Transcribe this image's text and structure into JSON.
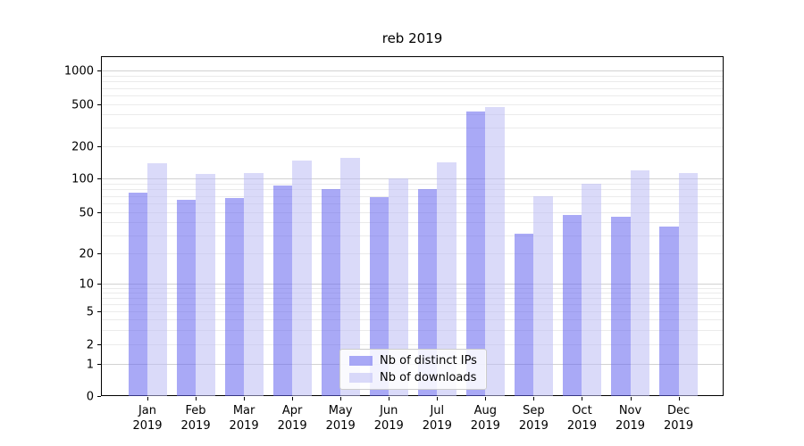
{
  "title": "reb 2019",
  "chart_data": {
    "type": "bar",
    "title": "reb 2019",
    "categories": [
      "Jan",
      "Feb",
      "Mar",
      "Apr",
      "May",
      "Jun",
      "Jul",
      "Aug",
      "Sep",
      "Oct",
      "Nov",
      "Dec"
    ],
    "x_sublabel": "2019",
    "series": [
      {
        "name": "Nb of distinct IPs",
        "color": "rgba(99,99,238,0.55)",
        "values": [
          75,
          64,
          67,
          86,
          80,
          68,
          80,
          430,
          31,
          47,
          45,
          36
        ]
      },
      {
        "name": "Nb of downloads",
        "color": "rgba(187,187,244,0.55)",
        "values": [
          140,
          110,
          113,
          147,
          155,
          100,
          142,
          475,
          69,
          90,
          119,
          112
        ]
      }
    ],
    "y_scale": "symlog",
    "y_ticks": [
      0,
      1,
      2,
      5,
      10,
      20,
      50,
      100,
      200,
      500,
      1000
    ],
    "ylim": [
      0,
      1400
    ],
    "grid": true,
    "legend_position": "lower center inside axes"
  },
  "colors": {
    "major_grid": "#d2d2d2",
    "minor_grid": "#ebebeb",
    "axis_spine": "#000000",
    "legend_border": "#cccccc",
    "background": "#ffffff"
  }
}
